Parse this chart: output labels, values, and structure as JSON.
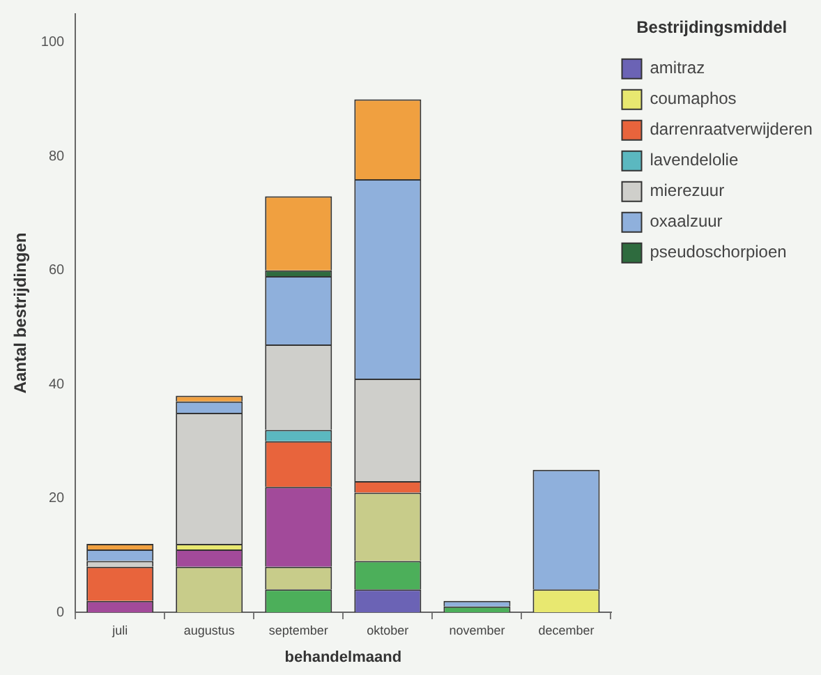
{
  "chart_data": {
    "type": "bar",
    "stacked": true,
    "xlabel": "behandelmaand",
    "ylabel": "Aantal bestrijdingen",
    "legend_title": "Bestrijdingsmiddel",
    "legend": "right",
    "grid": false,
    "categories": [
      "juli",
      "augustus",
      "september",
      "oktober",
      "november",
      "december"
    ],
    "ylim": [
      0,
      105
    ],
    "yticks": [
      0,
      20,
      40,
      60,
      80,
      100
    ],
    "series": [
      {
        "name": "amitraz",
        "color": "#6b63b5",
        "values": [
          0,
          0,
          0,
          4,
          0,
          0
        ]
      },
      {
        "color": "#4caf5a",
        "values": [
          0,
          0,
          4,
          5,
          1,
          0
        ]
      },
      {
        "color": "#c8cc8a",
        "values": [
          0,
          8,
          4,
          12,
          0,
          0
        ]
      },
      {
        "color": "#a24a9a",
        "values": [
          2,
          3,
          14,
          0,
          0,
          0
        ]
      },
      {
        "name": "coumaphos",
        "color": "#e8e870",
        "values": [
          0,
          1,
          0,
          0,
          0,
          4
        ]
      },
      {
        "name": "darrenraatverwijderen",
        "color": "#e8643c",
        "values": [
          6,
          0,
          8,
          2,
          0,
          0
        ]
      },
      {
        "name": "lavendelolie",
        "color": "#5bb8c0",
        "values": [
          0,
          0,
          2,
          0,
          0,
          0
        ]
      },
      {
        "name": "mierezuur",
        "color": "#cfcfcb",
        "values": [
          1,
          23,
          15,
          18,
          0,
          0
        ]
      },
      {
        "name": "oxaalzuur",
        "color": "#8fb0dc",
        "values": [
          2,
          2,
          12,
          35,
          1,
          21
        ]
      },
      {
        "name": "pseudoschorpioen",
        "color": "#2e6b3e",
        "values": [
          0,
          0,
          1,
          0,
          0,
          0
        ]
      },
      {
        "color": "#f0a040",
        "values": [
          1,
          1,
          13,
          14,
          0,
          0
        ]
      }
    ]
  }
}
